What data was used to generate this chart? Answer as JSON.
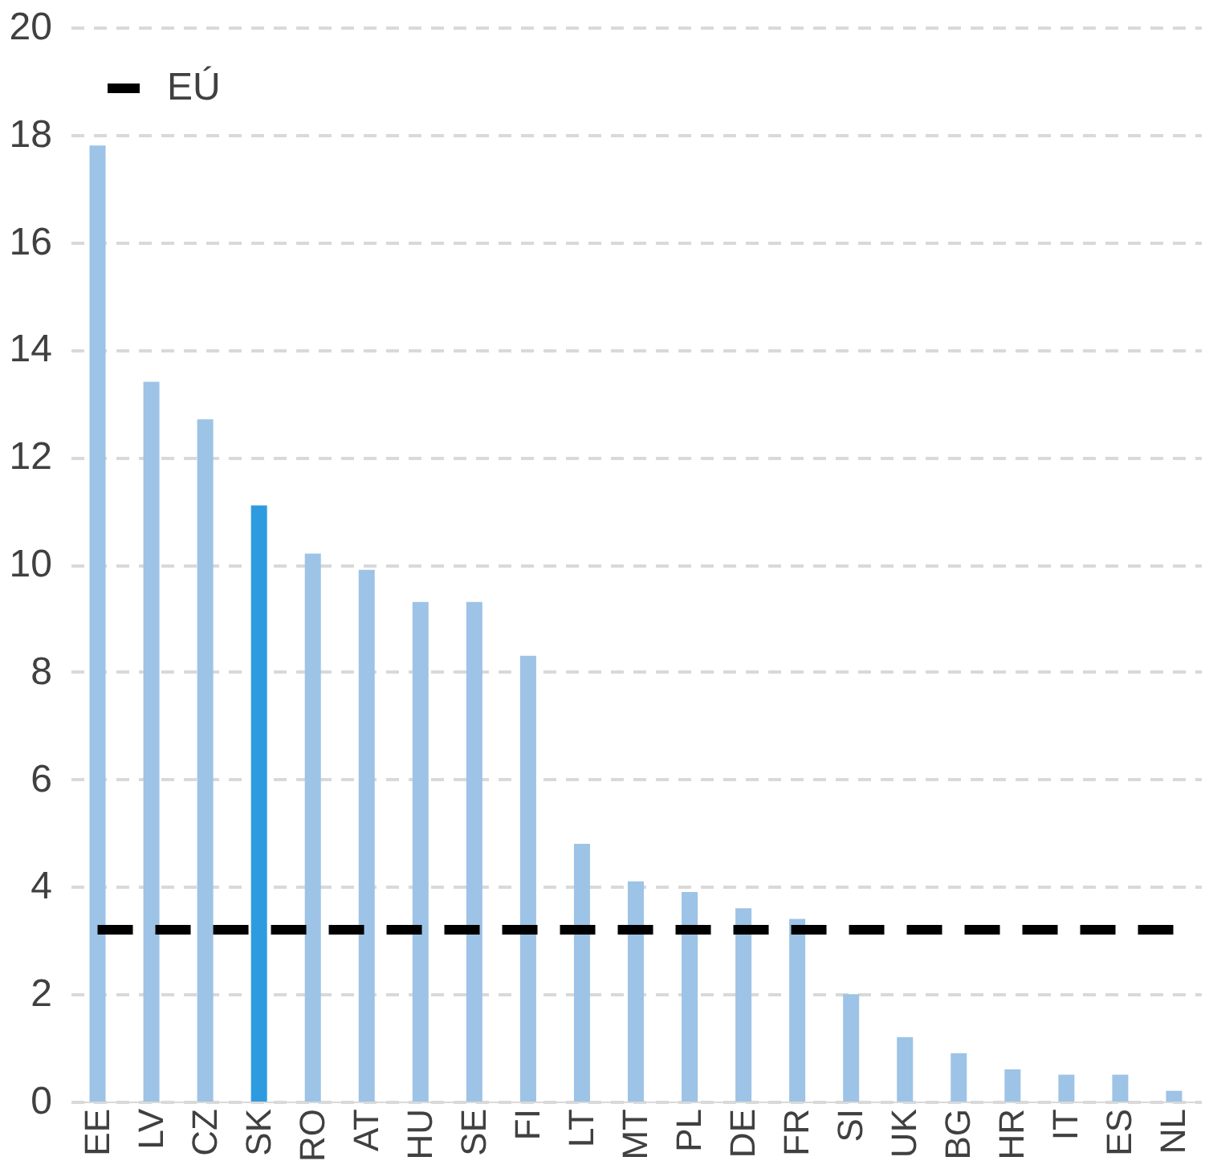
{
  "chart_data": {
    "type": "bar",
    "categories": [
      "EE",
      "LV",
      "CZ",
      "SK",
      "RO",
      "AT",
      "HU",
      "SE",
      "FI",
      "LT",
      "MT",
      "PL",
      "DE",
      "FR",
      "SI",
      "UK",
      "BG",
      "HR",
      "IT",
      "ES",
      "NL"
    ],
    "series": [
      {
        "colors": [
          "#9dc3e6",
          "#9dc3e6",
          "#9dc3e6",
          "#2e9be0",
          "#9dc3e6",
          "#9dc3e6",
          "#9dc3e6",
          "#9dc3e6",
          "#9dc3e6",
          "#9dc3e6",
          "#9dc3e6",
          "#9dc3e6",
          "#9dc3e6",
          "#9dc3e6",
          "#9dc3e6",
          "#9dc3e6",
          "#9dc3e6",
          "#9dc3e6",
          "#9dc3e6",
          "#9dc3e6",
          "#9dc3e6"
        ],
        "values": [
          17.8,
          13.4,
          12.7,
          11.1,
          10.2,
          9.9,
          9.3,
          9.3,
          8.3,
          4.8,
          4.1,
          3.9,
          3.6,
          3.4,
          2.0,
          1.2,
          0.9,
          0.6,
          0.5,
          0.5,
          0.2
        ]
      },
      {
        "type": "line",
        "name": "EÚ",
        "color": "#000000",
        "line_style": "dashed",
        "values": [
          3.2,
          3.2,
          3.2,
          3.2,
          3.2,
          3.2,
          3.2,
          3.2,
          3.2,
          3.2,
          3.2,
          3.2,
          3.2,
          3.2,
          3.2,
          3.2,
          3.2,
          3.2,
          3.2,
          3.2,
          3.2
        ]
      }
    ],
    "ylim": [
      0,
      20
    ],
    "yticks": [
      0,
      2,
      4,
      6,
      8,
      10,
      12,
      14,
      16,
      18,
      20
    ],
    "grid": "y",
    "legend": "top left"
  }
}
